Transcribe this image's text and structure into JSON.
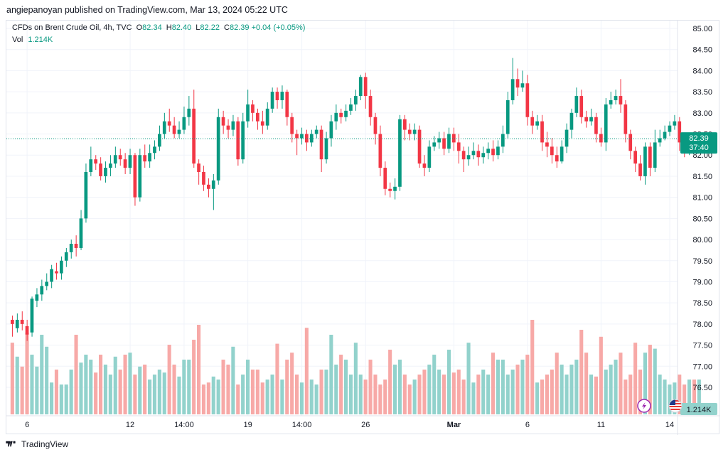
{
  "header": {
    "published": "angiepanoyan published on TradingView.com, Mar 13, 2024 05:22 UTC"
  },
  "legend": {
    "symbol": "CFDs on Brent Crude Oil, 4h, TVC",
    "o_label": "O",
    "o": "82.34",
    "h_label": "H",
    "h": "82.40",
    "l_label": "L",
    "l": "82.22",
    "c_label": "C",
    "c": "82.39",
    "change": "+0.04 (+0.05%)",
    "vol_label": "Vol",
    "vol": "1.214K"
  },
  "price_badge": {
    "price": "82.39",
    "countdown": "37:40"
  },
  "volume_badge": "1.214K",
  "footer": {
    "brand": "TradingView"
  },
  "colors": {
    "up": "#089981",
    "down": "#f23645",
    "up_vol": "#92d2cc",
    "down_vol": "#f7a9a7",
    "grid": "#f0f3fa",
    "dotted": "#089981"
  },
  "icons": [
    "lightning-icon",
    "us-flag-icon",
    "tradingview-logo-icon"
  ],
  "chart_data": {
    "type": "candlestick",
    "title": "CFDs on Brent Crude Oil, 4h, TVC",
    "y_ticks": [
      "85.00",
      "84.50",
      "84.00",
      "83.50",
      "83.00",
      "82.50",
      "82.00",
      "81.50",
      "81.00",
      "80.50",
      "80.00",
      "79.50",
      "79.00",
      "78.50",
      "78.00",
      "77.50",
      "77.00",
      "76.50"
    ],
    "ylim": [
      76.0,
      85.2
    ],
    "x_ticks": [
      {
        "label": "6",
        "bar": 3
      },
      {
        "label": "12",
        "bar": 24
      },
      {
        "label": "14:00",
        "bar": 35
      },
      {
        "label": "19",
        "bar": 48
      },
      {
        "label": "14:00",
        "bar": 59
      },
      {
        "label": "26",
        "bar": 72
      },
      {
        "label": "Mar",
        "bar": 90
      },
      {
        "label": "6",
        "bar": 105
      },
      {
        "label": "11",
        "bar": 120
      },
      {
        "label": "14",
        "bar": 134
      }
    ],
    "candles": [
      [
        78.1,
        78.0,
        78.2,
        77.7
      ],
      [
        77.9,
        78.1,
        78.25,
        77.8
      ],
      [
        78.1,
        78.0,
        78.3,
        77.85
      ],
      [
        77.95,
        77.75,
        78.1,
        77.6
      ],
      [
        77.8,
        78.6,
        78.65,
        77.7
      ],
      [
        78.55,
        78.7,
        78.85,
        78.4
      ],
      [
        78.7,
        78.9,
        79.05,
        78.55
      ],
      [
        78.9,
        79.0,
        79.2,
        78.8
      ],
      [
        79.0,
        79.3,
        79.4,
        78.85
      ],
      [
        79.25,
        79.2,
        79.45,
        79.05
      ],
      [
        79.2,
        79.5,
        79.6,
        79.05
      ],
      [
        79.5,
        79.7,
        79.8,
        79.35
      ],
      [
        79.7,
        79.9,
        80.0,
        79.55
      ],
      [
        79.9,
        79.8,
        80.1,
        79.6
      ],
      [
        79.8,
        80.5,
        80.7,
        79.75
      ],
      [
        80.5,
        81.6,
        81.8,
        80.4
      ],
      [
        81.6,
        81.9,
        82.2,
        81.5
      ],
      [
        81.9,
        81.8,
        82.0,
        81.65
      ],
      [
        81.8,
        81.5,
        81.95,
        81.4
      ],
      [
        81.5,
        81.7,
        81.85,
        81.35
      ],
      [
        81.7,
        81.8,
        82.0,
        81.5
      ],
      [
        81.8,
        82.0,
        82.2,
        81.7
      ],
      [
        82.0,
        81.9,
        82.15,
        81.75
      ],
      [
        81.9,
        81.7,
        82.05,
        81.55
      ],
      [
        81.7,
        82.0,
        82.15,
        81.55
      ],
      [
        82.0,
        81.0,
        82.05,
        80.8
      ],
      [
        81.0,
        82.0,
        82.15,
        80.9
      ],
      [
        82.0,
        81.85,
        82.25,
        81.7
      ],
      [
        81.85,
        82.05,
        82.25,
        81.7
      ],
      [
        82.05,
        82.2,
        82.35,
        81.9
      ],
      [
        82.2,
        82.5,
        82.7,
        82.1
      ],
      [
        82.5,
        82.8,
        83.0,
        82.4
      ],
      [
        82.8,
        82.7,
        83.1,
        82.55
      ],
      [
        82.7,
        82.5,
        82.9,
        82.4
      ],
      [
        82.5,
        82.6,
        82.8,
        82.4
      ],
      [
        82.6,
        82.9,
        83.15,
        82.5
      ],
      [
        82.9,
        83.1,
        83.4,
        82.7
      ],
      [
        83.1,
        81.8,
        83.55,
        81.7
      ],
      [
        81.8,
        81.6,
        81.9,
        81.3
      ],
      [
        81.6,
        81.3,
        81.75,
        81.15
      ],
      [
        81.3,
        81.2,
        81.45,
        81.0
      ],
      [
        81.2,
        81.4,
        81.55,
        80.7
      ],
      [
        81.4,
        82.9,
        83.1,
        81.3
      ],
      [
        82.9,
        82.7,
        83.05,
        82.5
      ],
      [
        82.7,
        82.6,
        82.85,
        82.4
      ],
      [
        82.6,
        82.8,
        82.95,
        82.45
      ],
      [
        82.8,
        81.9,
        82.9,
        81.75
      ],
      [
        81.9,
        82.8,
        83.0,
        81.8
      ],
      [
        82.8,
        83.2,
        83.55,
        82.65
      ],
      [
        83.2,
        83.0,
        83.3,
        82.8
      ],
      [
        83.0,
        82.8,
        83.1,
        82.6
      ],
      [
        82.8,
        82.7,
        83.05,
        82.5
      ],
      [
        82.7,
        83.1,
        83.25,
        82.6
      ],
      [
        83.1,
        83.5,
        83.6,
        83.0
      ],
      [
        83.5,
        83.3,
        83.6,
        83.1
      ],
      [
        83.3,
        83.5,
        83.65,
        83.1
      ],
      [
        83.5,
        82.9,
        83.55,
        82.7
      ],
      [
        82.9,
        82.5,
        83.0,
        82.3
      ],
      [
        82.5,
        82.4,
        82.6,
        82.0
      ],
      [
        82.4,
        82.5,
        82.65,
        82.25
      ],
      [
        82.5,
        82.3,
        82.6,
        82.1
      ],
      [
        82.3,
        82.5,
        82.6,
        82.2
      ],
      [
        82.5,
        82.6,
        82.7,
        82.4
      ],
      [
        82.6,
        81.9,
        82.7,
        81.6
      ],
      [
        81.9,
        82.4,
        82.55,
        81.8
      ],
      [
        82.4,
        82.8,
        82.95,
        82.2
      ],
      [
        82.8,
        83.0,
        83.2,
        82.6
      ],
      [
        83.0,
        82.9,
        83.1,
        82.75
      ],
      [
        82.9,
        83.05,
        83.2,
        82.8
      ],
      [
        83.05,
        83.2,
        83.35,
        82.95
      ],
      [
        83.2,
        83.4,
        83.55,
        83.05
      ],
      [
        83.4,
        83.85,
        83.9,
        83.3
      ],
      [
        83.85,
        83.4,
        83.95,
        83.1
      ],
      [
        83.4,
        82.9,
        83.55,
        82.7
      ],
      [
        82.9,
        82.5,
        83.0,
        82.25
      ],
      [
        82.5,
        81.7,
        82.7,
        81.5
      ],
      [
        81.7,
        81.2,
        81.85,
        81.05
      ],
      [
        81.2,
        81.15,
        81.35,
        81.0
      ],
      [
        81.15,
        81.25,
        81.45,
        80.95
      ],
      [
        81.25,
        82.85,
        82.95,
        81.15
      ],
      [
        82.85,
        82.6,
        82.95,
        82.35
      ],
      [
        82.6,
        82.5,
        82.75,
        82.35
      ],
      [
        82.5,
        82.6,
        82.75,
        82.35
      ],
      [
        82.6,
        81.8,
        82.7,
        81.7
      ],
      [
        81.8,
        81.7,
        82.0,
        81.5
      ],
      [
        81.7,
        82.2,
        82.35,
        81.6
      ],
      [
        82.2,
        82.3,
        82.45,
        82.1
      ],
      [
        82.3,
        82.4,
        82.55,
        82.15
      ],
      [
        82.4,
        82.15,
        82.55,
        82.0
      ],
      [
        82.15,
        82.5,
        82.65,
        82.05
      ],
      [
        82.5,
        82.3,
        82.65,
        82.1
      ],
      [
        82.3,
        82.1,
        82.5,
        81.8
      ],
      [
        82.1,
        81.9,
        82.2,
        81.6
      ],
      [
        81.9,
        82.0,
        82.2,
        81.75
      ],
      [
        82.0,
        82.1,
        82.3,
        81.9
      ],
      [
        82.1,
        81.95,
        82.25,
        81.75
      ],
      [
        81.95,
        82.05,
        82.2,
        81.8
      ],
      [
        82.05,
        82.15,
        82.3,
        81.9
      ],
      [
        82.15,
        82.0,
        82.35,
        81.85
      ],
      [
        82.0,
        82.2,
        82.35,
        81.9
      ],
      [
        82.2,
        82.5,
        82.7,
        82.05
      ],
      [
        82.5,
        83.3,
        83.5,
        82.4
      ],
      [
        83.3,
        83.8,
        84.3,
        83.2
      ],
      [
        83.8,
        83.6,
        84.05,
        83.4
      ],
      [
        83.6,
        83.7,
        84.0,
        83.5
      ],
      [
        83.7,
        82.9,
        83.9,
        82.7
      ],
      [
        82.9,
        82.7,
        83.05,
        82.5
      ],
      [
        82.7,
        82.8,
        82.95,
        82.6
      ],
      [
        82.8,
        82.3,
        82.95,
        82.1
      ],
      [
        82.3,
        82.2,
        82.55,
        81.95
      ],
      [
        82.2,
        82.0,
        82.4,
        81.8
      ],
      [
        82.0,
        81.85,
        82.2,
        81.7
      ],
      [
        81.85,
        82.2,
        82.35,
        81.8
      ],
      [
        82.2,
        82.6,
        82.75,
        82.05
      ],
      [
        82.6,
        83.0,
        83.1,
        82.4
      ],
      [
        83.0,
        83.4,
        83.6,
        82.9
      ],
      [
        83.4,
        82.9,
        83.55,
        82.75
      ],
      [
        82.9,
        82.8,
        83.05,
        82.65
      ],
      [
        82.8,
        82.9,
        83.1,
        82.7
      ],
      [
        82.9,
        82.5,
        83.0,
        82.3
      ],
      [
        82.5,
        82.3,
        82.65,
        82.2
      ],
      [
        82.3,
        83.2,
        83.35,
        82.1
      ],
      [
        83.2,
        83.3,
        83.5,
        83.1
      ],
      [
        83.3,
        83.4,
        83.55,
        83.2
      ],
      [
        83.4,
        83.2,
        83.8,
        83.0
      ],
      [
        83.2,
        82.5,
        83.3,
        82.3
      ],
      [
        82.5,
        82.1,
        82.6,
        81.9
      ],
      [
        82.1,
        81.8,
        82.2,
        81.6
      ],
      [
        81.8,
        81.5,
        82.0,
        81.4
      ],
      [
        81.5,
        82.2,
        82.3,
        81.3
      ],
      [
        82.2,
        81.7,
        82.3,
        81.5
      ],
      [
        81.7,
        82.3,
        82.6,
        81.6
      ],
      [
        82.3,
        82.4,
        82.6,
        82.2
      ],
      [
        82.4,
        82.55,
        82.7,
        82.35
      ],
      [
        82.55,
        82.7,
        82.8,
        82.45
      ],
      [
        82.7,
        82.8,
        82.95,
        82.6
      ],
      [
        82.8,
        82.3,
        82.9,
        82.1
      ],
      [
        82.3,
        82.1,
        82.45,
        81.95
      ],
      [
        82.1,
        82.35,
        82.45,
        82.0
      ],
      [
        82.35,
        82.34,
        82.42,
        82.25
      ],
      [
        82.34,
        82.39,
        82.4,
        82.22
      ]
    ],
    "volume": [
      0.65,
      0.58,
      0.48,
      0.42,
      0.6,
      0.48,
      0.8,
      0.75,
      0.32,
      0.45,
      0.3,
      0.3,
      0.45,
      0.4,
      0.52,
      0.6,
      0.55,
      0.42,
      0.3,
      0.5,
      0.4,
      0.58,
      0.45,
      0.6,
      0.52,
      0.4,
      0.48,
      0.5,
      0.35,
      0.4,
      0.45,
      0.42,
      0.62,
      0.5,
      0.38,
      0.55,
      0.55,
      0.75,
      0.4,
      0.3,
      0.32,
      0.38,
      0.35,
      0.55,
      0.5,
      0.4,
      0.3,
      0.4,
      0.55,
      0.45,
      0.45,
      0.32,
      0.35,
      0.4,
      0.3,
      0.35,
      0.55,
      0.62,
      0.4,
      0.32,
      0.3,
      0.35,
      0.3,
      0.45,
      0.45,
      0.55,
      0.5,
      0.6,
      0.55,
      0.4,
      0.6,
      0.4,
      0.35,
      0.55,
      0.4,
      0.3,
      0.35,
      0.3,
      0.5,
      0.55,
      0.4,
      0.3,
      0.35,
      0.4,
      0.42,
      0.5,
      0.6,
      0.45,
      0.4,
      0.35,
      0.42,
      0.45,
      0.35,
      0.4,
      0.32,
      0.4,
      0.45,
      0.4,
      0.62,
      0.6,
      0.55,
      0.4,
      0.45,
      0.5,
      0.55,
      0.6,
      0.4,
      0.32,
      0.35,
      0.4,
      0.45,
      0.55,
      0.5,
      0.4,
      0.5,
      0.55,
      0.6,
      0.62,
      0.4,
      0.38,
      0.42,
      0.45,
      0.5,
      0.55,
      0.42,
      0.35,
      0.4,
      0.38,
      0.45,
      0.62,
      0.7,
      0.5,
      0.4,
      0.35,
      0.3,
      0.32,
      0.4,
      0.3
    ],
    "volume_spikes": {
      "0": 0.72,
      "3": 0.82,
      "7": 0.68,
      "13": 0.8,
      "18": 0.6,
      "24": 0.62,
      "32": 0.7,
      "38": 0.9,
      "45": 0.68,
      "54": 0.71,
      "60": 0.87,
      "65": 0.8,
      "70": 0.72,
      "77": 0.65,
      "84": 0.45,
      "89": 0.65,
      "93": 0.72,
      "99": 0.55,
      "106": 0.95,
      "111": 0.62,
      "116": 0.85,
      "120": 0.78,
      "124": 0.62,
      "127": 0.72,
      "131": 0.66
    },
    "last_price": 82.39
  }
}
